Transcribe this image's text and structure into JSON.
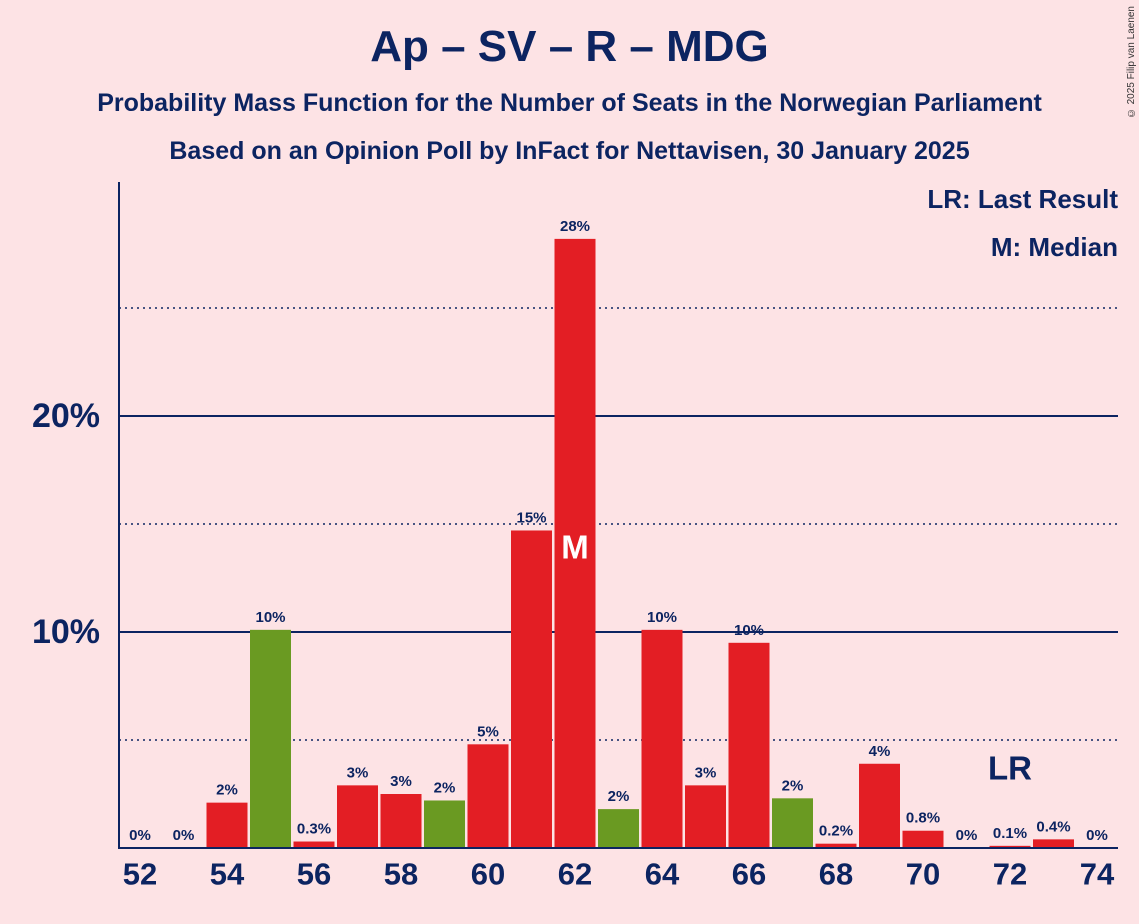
{
  "title": "Ap – SV – R – MDG",
  "subtitle1": "Probability Mass Function for the Number of Seats in the Norwegian Parliament",
  "subtitle2": "Based on an Opinion Poll by InFact for Nettavisen, 30 January 2025",
  "copyright": "© 2025 Filip van Laenen",
  "legend": {
    "lr": "LR: Last Result",
    "m": "M: Median"
  },
  "colors": {
    "red": "#e31e24",
    "green": "#6a9a22",
    "axis": "#0c2461",
    "background": "#fde3e5"
  },
  "chart_data": {
    "type": "bar",
    "x": [
      52,
      53,
      54,
      55,
      56,
      57,
      58,
      59,
      60,
      61,
      62,
      63,
      64,
      65,
      66,
      67,
      68,
      69,
      70,
      71,
      72,
      73,
      74
    ],
    "values": [
      0,
      0,
      2.1,
      10.1,
      0.3,
      2.9,
      2.5,
      2.2,
      4.8,
      14.7,
      28.2,
      1.8,
      10.1,
      2.9,
      9.5,
      2.3,
      0.2,
      3.9,
      0.8,
      0,
      0.1,
      0.4,
      0
    ],
    "labels": [
      "0%",
      "0%",
      "2%",
      "10%",
      "0.3%",
      "3%",
      "3%",
      "2%",
      "5%",
      "15%",
      "28%",
      "2%",
      "10%",
      "3%",
      "10%",
      "2%",
      "0.2%",
      "4%",
      "0.8%",
      "0%",
      "0.1%",
      "0.4%",
      "0%"
    ],
    "bar_colors": [
      "red",
      "red",
      "red",
      "green",
      "red",
      "red",
      "red",
      "green",
      "red",
      "red",
      "red",
      "green",
      "red",
      "red",
      "red",
      "green",
      "red",
      "red",
      "red",
      "red",
      "red",
      "red",
      "red"
    ],
    "x_tick_labels": [
      "52",
      "54",
      "56",
      "58",
      "60",
      "62",
      "64",
      "66",
      "68",
      "70",
      "72",
      "74"
    ],
    "y_tick_labels": [
      "10%",
      "20%"
    ],
    "ylim": [
      0,
      30
    ],
    "grid": {
      "solid": [
        10,
        20
      ],
      "dotted": [
        5,
        15,
        25
      ]
    },
    "median": {
      "seat": 62,
      "label": "M"
    },
    "last_result": {
      "seat": 72,
      "label": "LR"
    }
  }
}
